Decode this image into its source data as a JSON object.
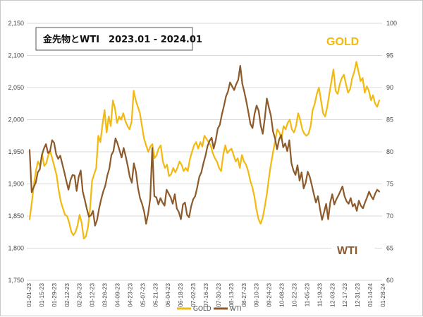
{
  "chart_data": {
    "type": "line",
    "title": "金先物とWTI　2023.01 - 2024.01",
    "left_axis": {
      "min": 1750,
      "max": 2150,
      "ticks": [
        "1,750",
        "1,800",
        "1,850",
        "1,900",
        "1,950",
        "2,000",
        "2,050",
        "2,100",
        "2,150"
      ]
    },
    "right_axis": {
      "min": 60,
      "max": 100,
      "ticks": [
        "60",
        "65",
        "70",
        "75",
        "80",
        "85",
        "90",
        "95",
        "100"
      ]
    },
    "x_ticks": [
      "01-01-23",
      "01-15-23",
      "01-29-23",
      "02-12-23",
      "02-26-23",
      "03-12-23",
      "03-26-23",
      "04-09-23",
      "04-23-23",
      "05-07-23",
      "05-21-23",
      "06-04-23",
      "06-18-23",
      "07-02-23",
      "07-16-23",
      "07-30-23",
      "08-13-23",
      "08-27-23",
      "09-10-23",
      "09-24-23",
      "10-08-23",
      "10-22-23",
      "11-05-23",
      "11-19-23",
      "12-03-23",
      "12-17-23",
      "12-31-23",
      "01-14-24",
      "01-28-24"
    ],
    "labels": {
      "gold": "GOLD",
      "wti": "WTI"
    },
    "legend": [
      {
        "name": "GOLD",
        "color": "#f2b90f"
      },
      {
        "name": "WTI",
        "color": "#8c5a2b"
      }
    ],
    "colors": {
      "gold": "#f2b90f",
      "wti": "#8c5a2b"
    },
    "series": [
      {
        "name": "GOLD",
        "axis": "left",
        "values": [
          1845,
          1870,
          1898,
          1920,
          1935,
          1928,
          1946,
          1928,
          1932,
          1945,
          1950,
          1938,
          1926,
          1913,
          1890,
          1872,
          1862,
          1852,
          1850,
          1840,
          1826,
          1820,
          1825,
          1835,
          1852,
          1840,
          1815,
          1818,
          1832,
          1860,
          1905,
          1915,
          1925,
          1975,
          1965,
          1992,
          2015,
          1980,
          2005,
          1990,
          2030,
          2018,
          1995,
          2005,
          2000,
          2010,
          1998,
          1990,
          1985,
          1997,
          2045,
          2030,
          2020,
          2010,
          1990,
          1970,
          1960,
          1950,
          1958,
          1962,
          1940,
          1945,
          1955,
          1960,
          1935,
          1925,
          1930,
          1912,
          1915,
          1925,
          1918,
          1925,
          1935,
          1930,
          1920,
          1925,
          1920,
          1938,
          1950,
          1960,
          1965,
          1955,
          1965,
          1958,
          1975,
          1970,
          1965,
          1960,
          1948,
          1940,
          1935,
          1925,
          1920,
          1945,
          1960,
          1948,
          1952,
          1955,
          1945,
          1935,
          1940,
          1925,
          1945,
          1935,
          1930,
          1920,
          1905,
          1895,
          1880,
          1860,
          1845,
          1838,
          1848,
          1865,
          1885,
          1910,
          1932,
          1950,
          1968,
          1985,
          1980,
          1970,
          1990,
          1985,
          1995,
          2000,
          1985,
          1980,
          1990,
          2010,
          2000,
          1985,
          1978,
          1975,
          1978,
          1990,
          2015,
          2025,
          2040,
          2050,
          2030,
          2010,
          2005,
          2020,
          2040,
          2060,
          2078,
          2045,
          2040,
          2055,
          2065,
          2070,
          2055,
          2042,
          2048,
          2065,
          2075,
          2090,
          2075,
          2060,
          2065,
          2042,
          2052,
          2045,
          2030,
          2038,
          2025,
          2020,
          2030
        ]
      },
      {
        "name": "WTI",
        "axis": "right",
        "values": [
          80.3,
          73.7,
          74.5,
          75.2,
          76.8,
          77.3,
          79.5,
          80.5,
          81.2,
          79.8,
          80.1,
          81.8,
          81.4,
          79.6,
          78.9,
          79.4,
          78.1,
          76.8,
          75.4,
          74.1,
          75.6,
          76.4,
          76.3,
          73.9,
          76.1,
          77.1,
          73.8,
          72.5,
          71.1,
          69.9,
          70.1,
          70.8,
          68.5,
          69.4,
          71.2,
          72.6,
          73.8,
          74.7,
          76.3,
          77.4,
          79.5,
          80.1,
          82.1,
          81.3,
          80.2,
          79.1,
          80.6,
          79.3,
          77.8,
          76.1,
          75.2,
          78.2,
          76.9,
          74.4,
          72.8,
          71.9,
          70.7,
          68.8,
          70.4,
          72.7,
          80.6,
          73.1,
          72.9,
          71.8,
          72.8,
          72.1,
          71.6,
          74.1,
          73.5,
          72.9,
          71.9,
          73.4,
          71.2,
          70.6,
          69.5,
          71.8,
          72.1,
          70.2,
          69.8,
          71.5,
          72.6,
          73.1,
          74.5,
          76.1,
          76.8,
          78.2,
          79.4,
          80.9,
          81.7,
          82.2,
          80.5,
          81.8,
          83.6,
          84.2,
          85.8,
          87.1,
          88.6,
          89.4,
          90.8,
          90.2,
          89.6,
          90.5,
          91.2,
          93.4,
          90.6,
          89.3,
          87.8,
          86.1,
          84.3,
          83.7,
          85.9,
          87.2,
          86.4,
          84.1,
          82.8,
          85.2,
          88.3,
          86.9,
          85.6,
          83.2,
          82.1,
          80.4,
          81.9,
          82.6,
          80.7,
          81.3,
          80.1,
          81.8,
          78.3,
          77.1,
          76.4,
          77.9,
          75.5,
          76.8,
          74.3,
          75.2,
          76.9,
          76.1,
          74.8,
          73.4,
          72.1,
          73.1,
          71.1,
          69.4,
          70.6,
          71.9,
          69.5,
          72.1,
          73.4,
          71.8,
          72.6,
          73.2,
          73.9,
          74.6,
          73.1,
          72.3,
          71.9,
          72.8,
          71.5,
          71.9,
          70.8,
          72.4,
          71.6,
          71.2,
          72.1,
          72.9,
          73.8,
          73.1,
          72.6,
          73.5,
          74.1,
          73.8
        ]
      }
    ]
  }
}
